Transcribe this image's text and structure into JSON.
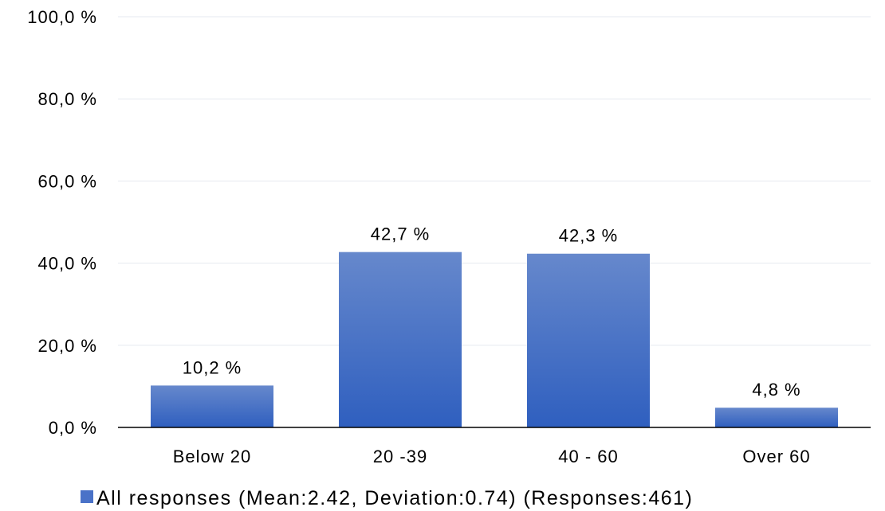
{
  "chart_data": {
    "type": "bar",
    "categories": [
      "Below 20",
      "20 -39",
      "40 - 60",
      "Over 60"
    ],
    "series": [
      {
        "name": "All responses (Mean:2.42, Deviation:0.74) (Responses:461)",
        "values": [
          10.2,
          42.7,
          42.3,
          4.8
        ],
        "value_labels": [
          "10,2 %",
          "42,7 %",
          "42,3 %",
          "4,8 %"
        ]
      }
    ],
    "ylim": [
      0,
      100
    ],
    "yticks": [
      0,
      20,
      40,
      60,
      80,
      100
    ],
    "ytick_labels": [
      "0,0 %",
      "20,0 %",
      "40,0 %",
      "60,0 %",
      "80,0 %",
      "100,0 %"
    ],
    "grid": true,
    "legend_position": "bottom",
    "colors": {
      "bar_top": "#6688cc",
      "bar_bottom": "#2f5fbf",
      "grid": "#e6e9f0",
      "axis": "#000000",
      "legend_swatch": "#4a72c8"
    }
  }
}
